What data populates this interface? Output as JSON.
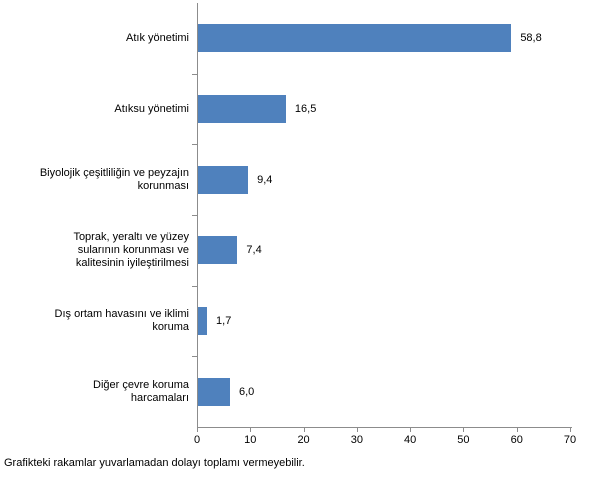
{
  "chart_data": {
    "type": "bar",
    "orientation": "horizontal",
    "categories": [
      "Atık yönetimi",
      "Atıksu yönetimi",
      "Biyolojik çeşitliliğin ve peyzajın\nkorunması",
      "Toprak, yeraltı ve yüzey\nsularının korunması ve\nkalitesinin iyileştirilmesi",
      "Dış ortam havasını ve iklimi\nkoruma",
      "Diğer çevre koruma\nharcamaları"
    ],
    "values": [
      58.8,
      16.5,
      9.4,
      7.4,
      1.7,
      6.0
    ],
    "value_labels": [
      "58,8",
      "16,5",
      "9,4",
      "7,4",
      "1,7",
      "6,0"
    ],
    "x_ticks": [
      0,
      10,
      20,
      30,
      40,
      50,
      60,
      70
    ],
    "x_tick_labels": [
      "0",
      "10",
      "20",
      "30",
      "40",
      "50",
      "60",
      "70"
    ],
    "xlim": [
      0,
      70
    ],
    "grid": false,
    "legend": false,
    "bar_color": "#4F81BD",
    "axis_color": "#8C8C8C"
  },
  "footer": {
    "note": "Grafikteki rakamlar yuvarlamadan dolayı toplamı vermeyebilir."
  }
}
